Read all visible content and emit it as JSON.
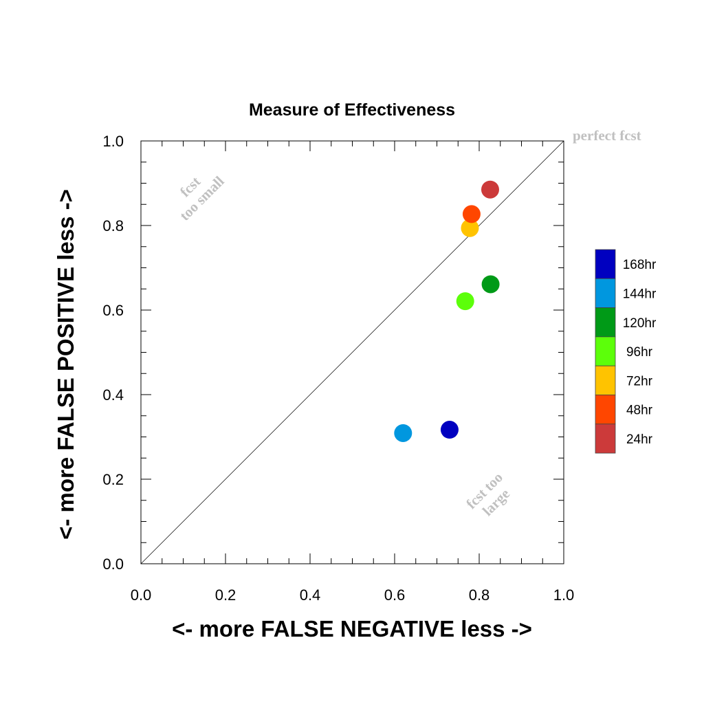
{
  "chart_data": {
    "type": "scatter",
    "title": "Measure of Effectiveness",
    "xlabel": "<- more   FALSE NEGATIVE   less ->",
    "ylabel": "<- more   FALSE POSITIVE   less ->",
    "xlim": [
      0.0,
      1.0
    ],
    "ylim": [
      0.0,
      1.0
    ],
    "xticks": [
      "0.0",
      "0.2",
      "0.4",
      "0.6",
      "0.8",
      "1.0"
    ],
    "yticks": [
      "0.0",
      "0.2",
      "0.4",
      "0.6",
      "0.8",
      "1.0"
    ],
    "grid": false,
    "diagonal_line": true,
    "annotations": {
      "top_right": "perfect fcst",
      "upper_left": [
        "fcst",
        "too small"
      ],
      "lower_right": [
        "fcst too",
        "large"
      ]
    },
    "legend": "right",
    "series": [
      {
        "name": "168hr",
        "color": "#0000c0",
        "x": 0.73,
        "y": 0.317
      },
      {
        "name": "144hr",
        "color": "#0097df",
        "x": 0.62,
        "y": 0.309
      },
      {
        "name": "120hr",
        "color": "#009a17",
        "x": 0.827,
        "y": 0.661
      },
      {
        "name": "96hr",
        "color": "#5cff0a",
        "x": 0.767,
        "y": 0.621
      },
      {
        "name": "72hr",
        "color": "#ffc300",
        "x": 0.778,
        "y": 0.794
      },
      {
        "name": "48hr",
        "color": "#ff4600",
        "x": 0.782,
        "y": 0.827
      },
      {
        "name": "24hr",
        "color": "#cc3a3a",
        "x": 0.826,
        "y": 0.885
      }
    ]
  }
}
